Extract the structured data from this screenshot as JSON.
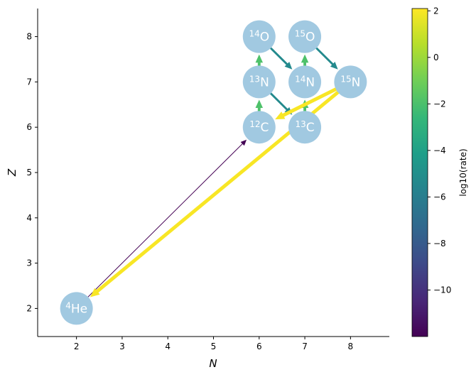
{
  "chart_data": {
    "type": "scatter",
    "title": "",
    "xlabel": "N",
    "ylabel": "Z",
    "xlim": [
      1.15,
      8.85
    ],
    "ylim": [
      1.38,
      8.62
    ],
    "xticks": [
      2,
      3,
      4,
      5,
      6,
      7,
      8
    ],
    "yticks": [
      2,
      3,
      4,
      5,
      6,
      7,
      8
    ],
    "grid": false,
    "node_color": "#a1c9e1",
    "nodes": [
      {
        "id": "he4",
        "mass": "4",
        "symbol": "He",
        "N": 2,
        "Z": 2
      },
      {
        "id": "c12",
        "mass": "12",
        "symbol": "C",
        "N": 6,
        "Z": 6
      },
      {
        "id": "c13",
        "mass": "13",
        "symbol": "C",
        "N": 7,
        "Z": 6
      },
      {
        "id": "n13",
        "mass": "13",
        "symbol": "N",
        "N": 6,
        "Z": 7
      },
      {
        "id": "n14",
        "mass": "14",
        "symbol": "N",
        "N": 7,
        "Z": 7
      },
      {
        "id": "n15",
        "mass": "15",
        "symbol": "N",
        "N": 8,
        "Z": 7
      },
      {
        "id": "o14",
        "mass": "14",
        "symbol": "O",
        "N": 6,
        "Z": 8
      },
      {
        "id": "o15",
        "mass": "15",
        "symbol": "O",
        "N": 7,
        "Z": 8
      }
    ],
    "edges": [
      {
        "from": "he4",
        "to": "c12",
        "log10_rate": -12
      },
      {
        "from": "c12",
        "to": "n13",
        "log10_rate": -1.9
      },
      {
        "from": "c13",
        "to": "n14",
        "log10_rate": -1.9
      },
      {
        "from": "n13",
        "to": "o14",
        "log10_rate": -1.9
      },
      {
        "from": "n14",
        "to": "o15",
        "log10_rate": -1.9
      },
      {
        "from": "n13",
        "to": "c13",
        "log10_rate": -5.3
      },
      {
        "from": "o14",
        "to": "n14",
        "log10_rate": -5.3
      },
      {
        "from": "o15",
        "to": "n15",
        "log10_rate": -5.3
      },
      {
        "from": "n15",
        "to": "c12",
        "log10_rate": 2
      },
      {
        "from": "n15",
        "to": "he4",
        "log10_rate": 2
      }
    ],
    "colorbar": {
      "label": "log10(rate)",
      "colormap": "viridis",
      "range": [
        -12,
        2.1
      ],
      "ticks": [
        2,
        0,
        -2,
        -4,
        -6,
        -8,
        -10
      ],
      "tick_labels": [
        "2",
        "0",
        "−2",
        "−4",
        "−6",
        "−8",
        "−10"
      ]
    }
  }
}
